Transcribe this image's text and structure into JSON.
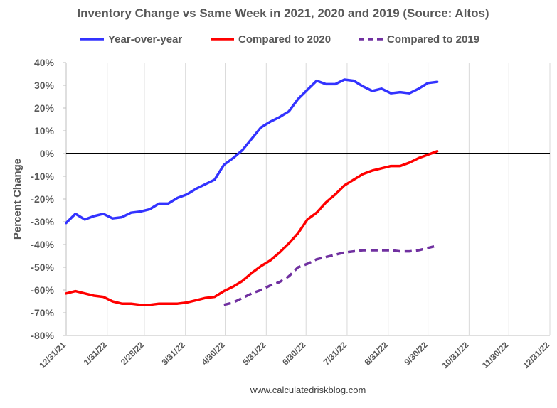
{
  "chart_data": {
    "type": "line",
    "title": "Inventory Change vs Same Week in 2021, 2020 and 2019 (Source: Altos)",
    "xlabel": "",
    "ylabel": "Percent Change",
    "ylim": [
      -80,
      40
    ],
    "yticks": [
      40,
      30,
      20,
      10,
      0,
      -10,
      -20,
      -30,
      -40,
      -50,
      -60,
      -70,
      -80
    ],
    "ytick_labels": [
      "40%",
      "30%",
      "20%",
      "10%",
      "0%",
      "-10%",
      "-20%",
      "-30%",
      "-40%",
      "-50%",
      "-60%",
      "-70%",
      "-80%"
    ],
    "xlim": [
      "2021-12-31",
      "2022-12-31"
    ],
    "xticks": [
      "2021-12-31",
      "2022-01-31",
      "2022-02-28",
      "2022-03-31",
      "2022-04-30",
      "2022-05-31",
      "2022-06-30",
      "2022-07-31",
      "2022-08-31",
      "2022-09-30",
      "2022-10-31",
      "2022-11-30",
      "2022-12-31"
    ],
    "xtick_labels": [
      "12/31/21",
      "1/31/22",
      "2/28/22",
      "3/31/22",
      "4/30/22",
      "5/31/22",
      "6/30/22",
      "7/31/22",
      "8/31/22",
      "9/30/22",
      "10/31/22",
      "11/30/22",
      "12/31/22"
    ],
    "grid": "vertical",
    "zero_line": true,
    "legend_position": "top",
    "annotation": "www.calculatedriskblog.com",
    "series": [
      {
        "name": "Year-over-year",
        "color": "#3333ff",
        "dash": "solid",
        "x": [
          "2021-12-31",
          "2022-01-07",
          "2022-01-14",
          "2022-01-21",
          "2022-01-28",
          "2022-02-04",
          "2022-02-11",
          "2022-02-18",
          "2022-02-25",
          "2022-03-04",
          "2022-03-11",
          "2022-03-18",
          "2022-03-25",
          "2022-04-01",
          "2022-04-08",
          "2022-04-15",
          "2022-04-22",
          "2022-04-29",
          "2022-05-06",
          "2022-05-13",
          "2022-05-20",
          "2022-05-27",
          "2022-06-03",
          "2022-06-10",
          "2022-06-17",
          "2022-06-24",
          "2022-07-01",
          "2022-07-08",
          "2022-07-15",
          "2022-07-22",
          "2022-07-29",
          "2022-08-05",
          "2022-08-12",
          "2022-08-19",
          "2022-08-26",
          "2022-09-02",
          "2022-09-09",
          "2022-09-16",
          "2022-09-23",
          "2022-09-30",
          "2022-10-07"
        ],
        "y": [
          -30.5,
          -26.5,
          -29,
          -27.5,
          -26.5,
          -28.5,
          -28,
          -26,
          -25.5,
          -24.5,
          -22,
          -22,
          -19.5,
          -18,
          -15.5,
          -13.5,
          -11.5,
          -5,
          -2,
          1.5,
          6.5,
          11.5,
          14,
          16,
          18.5,
          24,
          28,
          32,
          30.5,
          30.5,
          32.5,
          32,
          29.5,
          27.5,
          28.5,
          26.5,
          27,
          26.5,
          28.5,
          31,
          31.5
        ]
      },
      {
        "name": "Compared to 2020",
        "color": "#ff0000",
        "dash": "solid",
        "x": [
          "2021-12-31",
          "2022-01-07",
          "2022-01-14",
          "2022-01-21",
          "2022-01-28",
          "2022-02-04",
          "2022-02-11",
          "2022-02-18",
          "2022-02-25",
          "2022-03-04",
          "2022-03-11",
          "2022-03-18",
          "2022-03-25",
          "2022-04-01",
          "2022-04-08",
          "2022-04-15",
          "2022-04-22",
          "2022-04-29",
          "2022-05-06",
          "2022-05-13",
          "2022-05-20",
          "2022-05-27",
          "2022-06-03",
          "2022-06-10",
          "2022-06-17",
          "2022-06-24",
          "2022-07-01",
          "2022-07-08",
          "2022-07-15",
          "2022-07-22",
          "2022-07-29",
          "2022-08-05",
          "2022-08-12",
          "2022-08-19",
          "2022-08-26",
          "2022-09-02",
          "2022-09-09",
          "2022-09-16",
          "2022-09-23",
          "2022-09-30",
          "2022-10-07"
        ],
        "y": [
          -61.5,
          -60.5,
          -61.5,
          -62.5,
          -63,
          -65,
          -66,
          -66,
          -66.5,
          -66.5,
          -66,
          -66,
          -66,
          -65.5,
          -64.5,
          -63.5,
          -63,
          -60.5,
          -58.5,
          -56,
          -52.5,
          -49.5,
          -47,
          -43.5,
          -39.5,
          -35,
          -29,
          -26,
          -21.5,
          -18,
          -14,
          -11.5,
          -9,
          -7.5,
          -6.5,
          -5.5,
          -5.5,
          -4,
          -2,
          -0.5,
          1
        ]
      },
      {
        "name": "Compared to 2019",
        "color": "#7030a0",
        "dash": "dashed",
        "x": [
          "2022-04-29",
          "2022-05-06",
          "2022-05-13",
          "2022-05-20",
          "2022-05-27",
          "2022-06-03",
          "2022-06-10",
          "2022-06-17",
          "2022-06-24",
          "2022-07-01",
          "2022-07-08",
          "2022-07-15",
          "2022-07-22",
          "2022-07-29",
          "2022-08-05",
          "2022-08-12",
          "2022-08-19",
          "2022-08-26",
          "2022-09-02",
          "2022-09-09",
          "2022-09-16",
          "2022-09-23",
          "2022-09-30",
          "2022-10-07"
        ],
        "y": [
          -66.5,
          -65.5,
          -63.5,
          -61.5,
          -60,
          -58,
          -56.5,
          -54,
          -50,
          -48.5,
          -46.5,
          -45.5,
          -44.5,
          -43.5,
          -43,
          -42.5,
          -42.5,
          -42.5,
          -42.5,
          -43,
          -43,
          -42.5,
          -41.5,
          -40.5
        ]
      }
    ]
  }
}
